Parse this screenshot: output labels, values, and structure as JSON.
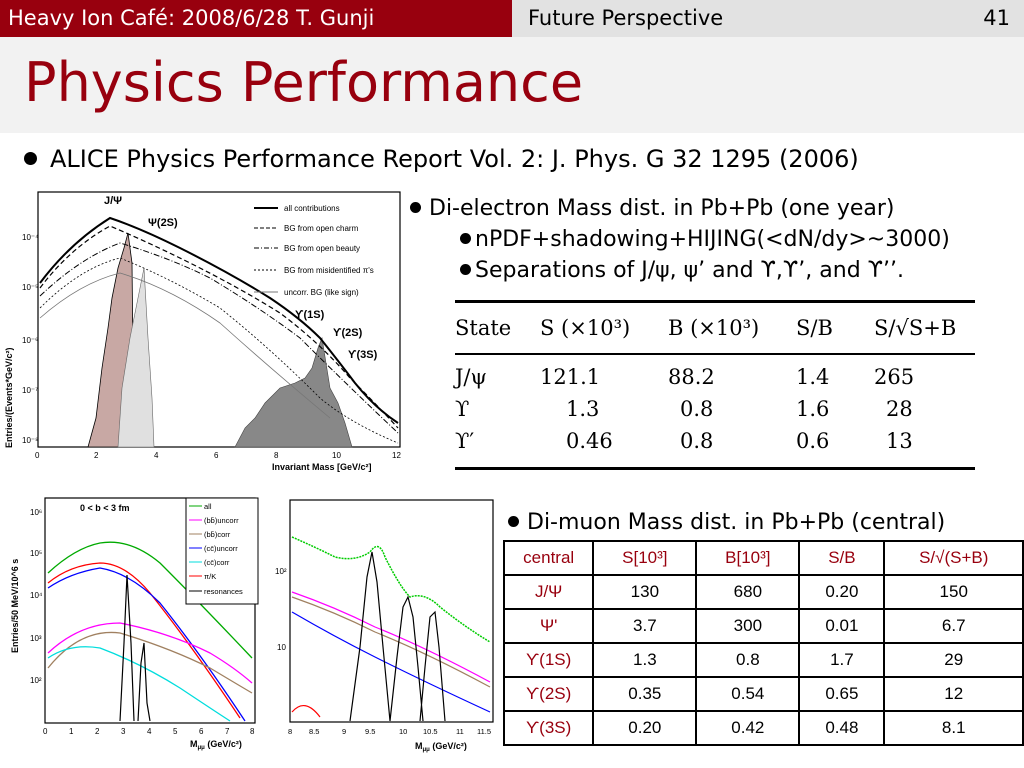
{
  "header": {
    "left": "Heavy Ion Café: 2008/6/28 T. Gunji",
    "section": "Future Perspective",
    "page_number": "41"
  },
  "title": "Physics Performance",
  "bullets": {
    "main": "ALICE Physics Performance Report Vol. 2: J. Phys. G 32 1295 (2006)",
    "dielectron": "Di-electron Mass dist. in Pb+Pb (one year)",
    "sub1": "nPDF+shadowing+HIJING(<dN/dy>~3000)",
    "sub2": "Separations of J/ψ, ψ’ and ϒ,ϒ’, and ϒ’’.",
    "dimuon": "Di-muon Mass dist. in Pb+Pb (central)"
  },
  "dielectron_table": {
    "headers": [
      "State",
      "S (×10³)",
      "B (×10³)",
      "S/B",
      "S/√S+B"
    ],
    "rows": [
      [
        "J/ψ",
        "121.1",
        "88.2",
        "1.4",
        "265"
      ],
      [
        "ϒ",
        "1.3",
        "0.8",
        "1.6",
        "28"
      ],
      [
        "ϒ′",
        "0.46",
        "0.8",
        "0.6",
        "13"
      ]
    ]
  },
  "dimuon_table": {
    "headers": [
      "central",
      "S[10³]",
      "B[10³]",
      "S/B",
      "S/√(S+B)"
    ],
    "rows": [
      [
        "J/Ψ",
        "130",
        "680",
        "0.20",
        "150"
      ],
      [
        "Ψ'",
        "3.7",
        "300",
        "0.01",
        "6.7"
      ],
      [
        "ϒ(1S)",
        "1.3",
        "0.8",
        "1.7",
        "29"
      ],
      [
        "ϒ(2S)",
        "0.35",
        "0.54",
        "0.65",
        "12"
      ],
      [
        "ϒ(3S)",
        "0.20",
        "0.42",
        "0.48",
        "8.1"
      ]
    ]
  },
  "colors": {
    "header_red": "#98000e",
    "header_gray": "#e2e2e2",
    "title_band": "#f2f2f2"
  },
  "chart_data": [
    {
      "type": "line",
      "ylabel": "Entries/(Events*GeV/c²)",
      "xlabel": "Invariant Mass [GeV/c²]",
      "xlim": [
        0,
        12
      ],
      "y_log": true,
      "x_ticks": [
        "0",
        "2",
        "4",
        "6",
        "8",
        "10",
        "12"
      ],
      "y_ticks": [
        "10⁻⁸",
        "10⁻⁷",
        "10⁻⁶",
        "10⁻⁵",
        "10⁻⁴"
      ],
      "annotations": [
        "J/Ψ",
        "Ψ(2S)",
        "ϒ(1S)",
        "ϒ(2S)",
        "ϒ(3S)"
      ],
      "legend": [
        "all contributions",
        "BG from open charm",
        "BG from open beauty",
        "BG from misidentified π's",
        "uncorr. BG (like sign)"
      ]
    },
    {
      "type": "line",
      "ylabel": "Entries/50 MeV/10^6 s",
      "xlabel": "M_μμ (GeV/c²)",
      "xlim": [
        0,
        8
      ],
      "y_log": true,
      "x_ticks": [
        "0",
        "1",
        "2",
        "3",
        "4",
        "5",
        "6",
        "7",
        "8"
      ],
      "y_ticks": [
        "10²",
        "10³",
        "10⁴",
        "10⁵",
        "10⁶"
      ],
      "annotations": [
        "0 < b < 3 fm"
      ],
      "legend": [
        {
          "label": "all",
          "color": "#00aa00"
        },
        {
          "label": "(bb̄)uncorr",
          "color": "#ff00ff"
        },
        {
          "label": "(bb̄)corr",
          "color": "#a08060"
        },
        {
          "label": "(cc̄)uncorr",
          "color": "#0000ff"
        },
        {
          "label": "(cc̄)corr",
          "color": "#00dddd"
        },
        {
          "label": "π/K",
          "color": "#ff0000"
        },
        {
          "label": "resonances",
          "color": "#000000"
        }
      ]
    },
    {
      "type": "line",
      "xlabel": "M_μμ (GeV/c²)",
      "xlim": [
        8,
        11.5
      ],
      "y_log": true,
      "x_ticks": [
        "8",
        "8.5",
        "9",
        "9.5",
        "10",
        "10.5",
        "11",
        "11.5"
      ],
      "y_ticks": [
        "10",
        "10²"
      ]
    }
  ]
}
